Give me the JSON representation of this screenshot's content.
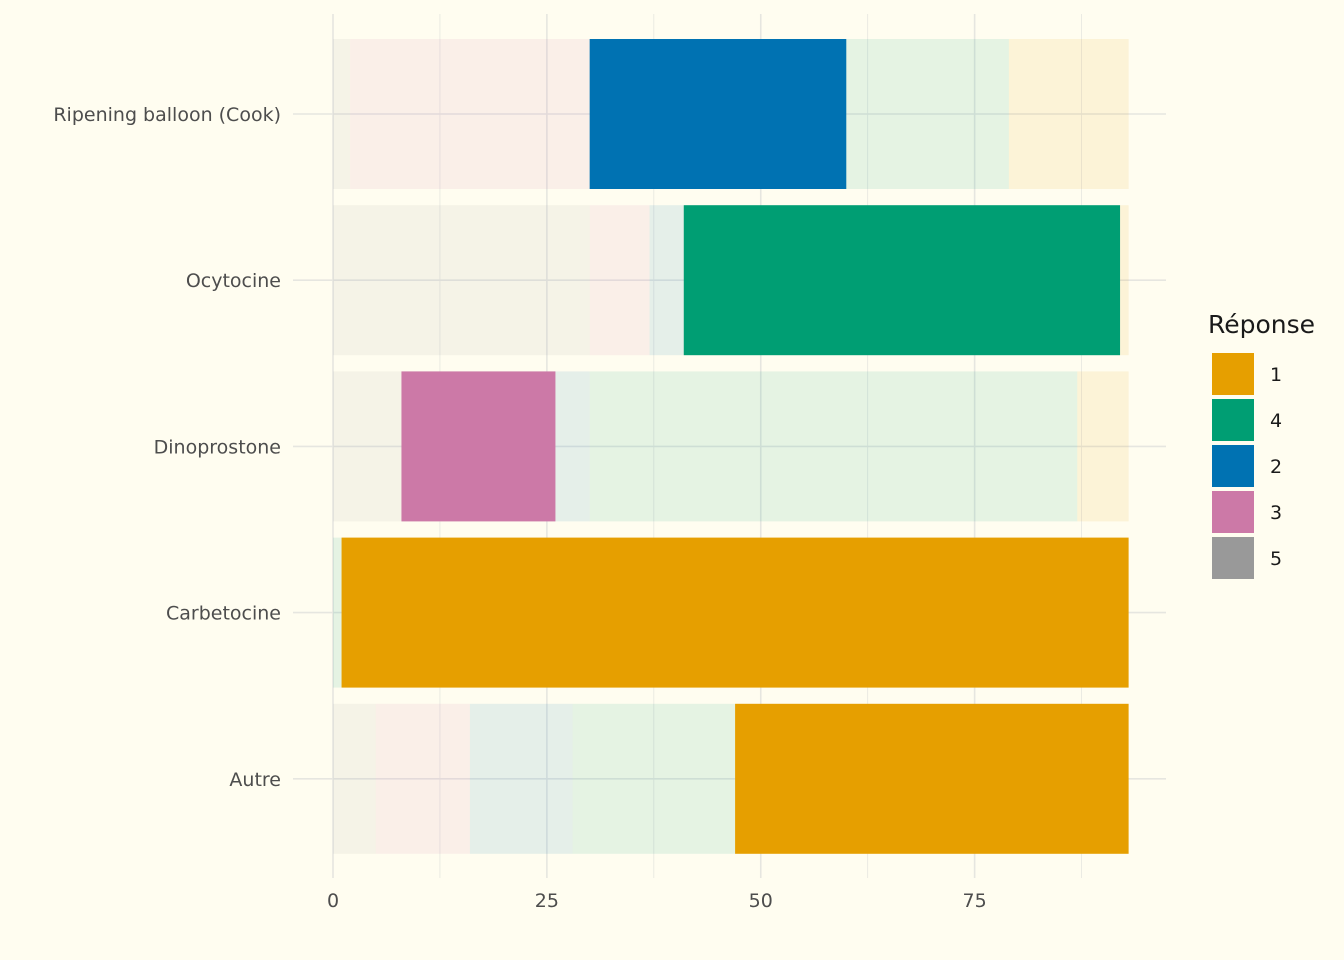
{
  "chart_data": {
    "type": "bar",
    "orientation": "horizontal",
    "stacked": true,
    "categories": [
      "Ripening balloon (Cook)",
      "Ocytocine",
      "Dinoprostone",
      "Carbetocine",
      "Autre"
    ],
    "stack_order": [
      "5",
      "3",
      "2",
      "4",
      "1"
    ],
    "series": [
      {
        "name": "5",
        "values": [
          2,
          30,
          8,
          0,
          5
        ]
      },
      {
        "name": "3",
        "values": [
          28,
          7,
          18,
          0,
          11
        ]
      },
      {
        "name": "2",
        "values": [
          30,
          4,
          4,
          0,
          12
        ]
      },
      {
        "name": "4",
        "values": [
          19,
          51,
          57,
          1,
          19
        ]
      },
      {
        "name": "1",
        "values": [
          14,
          1,
          6,
          92,
          46
        ]
      }
    ],
    "highlighted": {
      "Ripening balloon (Cook)": "2",
      "Ocytocine": "4",
      "Dinoprostone": "3",
      "Carbetocine": "1",
      "Autre": "1"
    },
    "xticks": [
      0,
      25,
      50,
      75
    ],
    "xlim": [
      0,
      98
    ],
    "xlabel": "",
    "ylabel": "",
    "grid": true,
    "legend": {
      "title": "Réponse",
      "position": "right",
      "order": [
        "1",
        "4",
        "2",
        "3",
        "5"
      ]
    },
    "colors": {
      "1": "#E69F00",
      "4": "#009E73",
      "2": "#0072B2",
      "3": "#CC79A7",
      "5": "#999999"
    },
    "background": "#fffdf0",
    "grid_color": "#e6e6e0"
  }
}
